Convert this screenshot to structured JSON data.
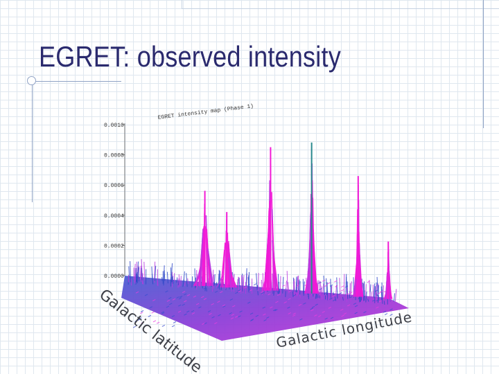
{
  "slide": {
    "title": "EGRET: observed intensity"
  },
  "chart_data": {
    "type": "surface",
    "title": "EGRET intensity map (Phase 1)",
    "xlabel": "Galactic longitude",
    "ylabel": "Galactic latitude",
    "zticks": [
      "0.0000",
      "0.0002",
      "0.0004",
      "0.0006",
      "0.0008",
      "0.0010"
    ],
    "zlim": [
      0,
      0.001
    ],
    "colors": {
      "base": "#2f48c8",
      "mid": "#b83be0",
      "peak": "#f21ad6",
      "pulsar_peak": "#2a8a8e"
    },
    "peaks_description": "diffuse galactic-plane emission with bright point sources",
    "peaks": [
      {
        "position": 0.28,
        "value": 0.00063
      },
      {
        "position": 0.36,
        "value": 0.0005
      },
      {
        "position": 0.52,
        "value": 0.00095
      },
      {
        "position": 0.67,
        "value": 0.001
      },
      {
        "position": 0.84,
        "value": 0.0008
      },
      {
        "position": 0.95,
        "value": 0.00038
      }
    ]
  }
}
